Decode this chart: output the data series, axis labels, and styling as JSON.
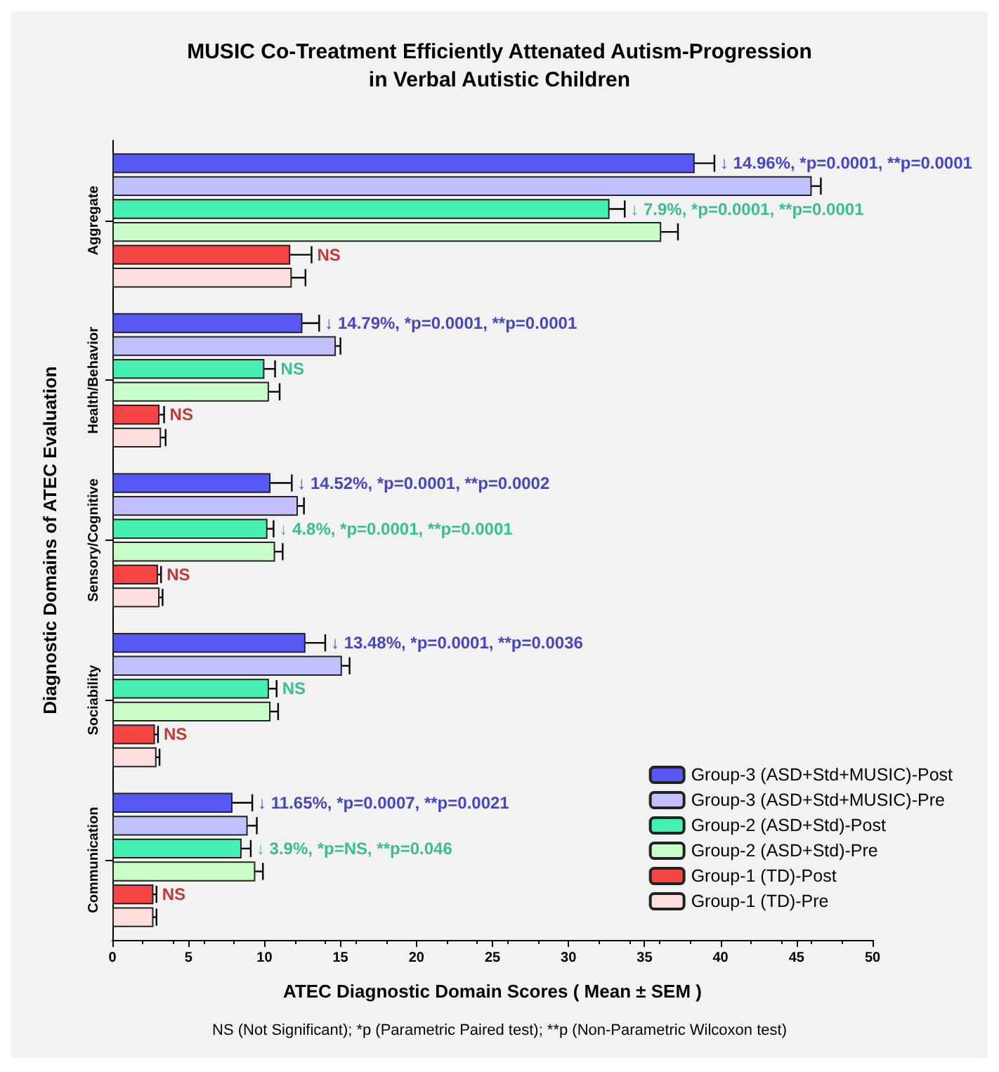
{
  "chart_data": {
    "type": "bar",
    "orientation": "horizontal",
    "title": "MUSIC Co-Treatment Efficiently Attenated Autism-Progression\nin Verbal Autistic Children",
    "xlabel": "ATEC Diagnostic Domain Scores ( Mean ± SEM )",
    "ylabel": "Diagnostic Domains of ATEC Evaluation",
    "annotations": [
      "NS (Not Significant); *p (Parametric Paired test); **p (Non-Parametric Wilcoxon test)",
      "↓ 14.96%, *p=0.0001, **p=0.0001",
      "↓ 7.9%, *p=0.0001, **p=0.0001",
      "NS",
      "↓ 14.79%, *p=0.0001, **p=0.0001",
      "NS",
      "NS",
      "↓ 14.52%, *p=0.0001, **p=0.0002",
      "↓ 4.8%, *p=0.0001, **p=0.0001",
      "NS",
      "↓ 13.48%, *p=0.0001, **p=0.0036",
      "NS",
      "NS",
      "↓ 11.65%, *p=0.0007, **p=0.0021",
      "↓ 3.9%, *p=NS, **p=0.046",
      "NS"
    ],
    "categories": [
      "Aggregate",
      "Health/Behavior",
      "Sensory/Cognitive",
      "Sociability",
      "Communication"
    ],
    "xlim": [
      0,
      50
    ],
    "xticks": [
      0,
      5,
      10,
      15,
      20,
      25,
      30,
      35,
      40,
      45,
      50
    ],
    "grid": false,
    "legend": "bottom right",
    "series": [
      {
        "name": "Group-3 (ASD+Std+MUSIC)-Post",
        "color": "#5858f5",
        "values": [
          38.3,
          12.5,
          10.4,
          12.7,
          7.9
        ],
        "errors": [
          1.3,
          1.1,
          1.4,
          1.3,
          1.3
        ]
      },
      {
        "name": "Group-3 (ASD+Std+MUSIC)-Pre",
        "color": "#c0c0ff",
        "values": [
          46.0,
          14.7,
          12.2,
          15.1,
          8.9
        ],
        "errors": [
          0.6,
          0.3,
          0.4,
          0.5,
          0.6
        ]
      },
      {
        "name": "Group-2 (ASD+Std)-Post",
        "color": "#45f0b0",
        "values": [
          32.7,
          10.0,
          10.2,
          10.3,
          8.5
        ],
        "errors": [
          1.0,
          0.7,
          0.4,
          0.5,
          0.6
        ]
      },
      {
        "name": "Group-2 (ASD+Std)-Pre",
        "color": "#c8ffc8",
        "values": [
          36.1,
          10.3,
          10.7,
          10.4,
          9.4
        ],
        "errors": [
          1.1,
          0.7,
          0.5,
          0.5,
          0.5
        ]
      },
      {
        "name": "Group-1 (TD)-Post",
        "color": "#f54545",
        "values": [
          11.7,
          3.1,
          3.0,
          2.8,
          2.7
        ],
        "errors": [
          1.4,
          0.3,
          0.2,
          0.2,
          0.2
        ]
      },
      {
        "name": "Group-1 (TD)-Pre",
        "color": "#ffdede",
        "values": [
          11.8,
          3.2,
          3.1,
          2.9,
          2.7
        ],
        "errors": [
          0.9,
          0.3,
          0.2,
          0.2,
          0.2
        ]
      }
    ]
  }
}
